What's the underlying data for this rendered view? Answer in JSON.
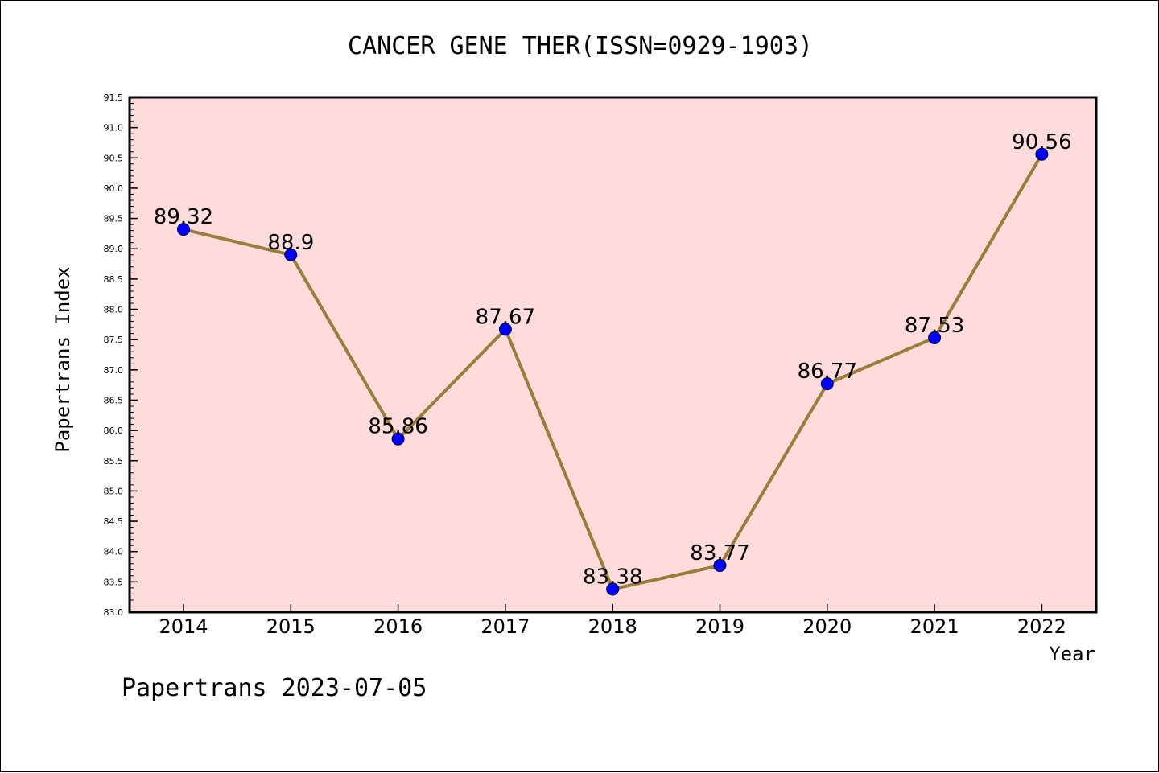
{
  "chart_data": {
    "type": "line",
    "title": "CANCER GENE THER(ISSN=0929-1903)",
    "xlabel": "Year",
    "ylabel": "Papertrans Index",
    "categories": [
      "2014",
      "2015",
      "2016",
      "2017",
      "2018",
      "2019",
      "2020",
      "2021",
      "2022"
    ],
    "series": [
      {
        "values": [
          89.32,
          88.9,
          85.86,
          87.67,
          83.38,
          83.77,
          86.77,
          87.53,
          90.56
        ],
        "data_labels": [
          "89.32",
          "88.9",
          "85.86",
          "87.67",
          "83.38",
          "83.77",
          "86.77",
          "87.53",
          "90.56"
        ]
      }
    ],
    "ylim": [
      83.0,
      91.5
    ],
    "yticks": [
      "83.0",
      "83.5",
      "84.0",
      "84.5",
      "85.0",
      "85.5",
      "86.0",
      "86.5",
      "87.0",
      "87.5",
      "88.0",
      "88.5",
      "89.0",
      "89.5",
      "90.0",
      "90.5",
      "91.0",
      "91.5"
    ],
    "grid": false,
    "colors": {
      "plot_background": "#ffdcdc",
      "line": "#9a7d3a",
      "marker": "#0000ff"
    }
  },
  "footer": {
    "text": "Papertrans 2023-07-05"
  }
}
